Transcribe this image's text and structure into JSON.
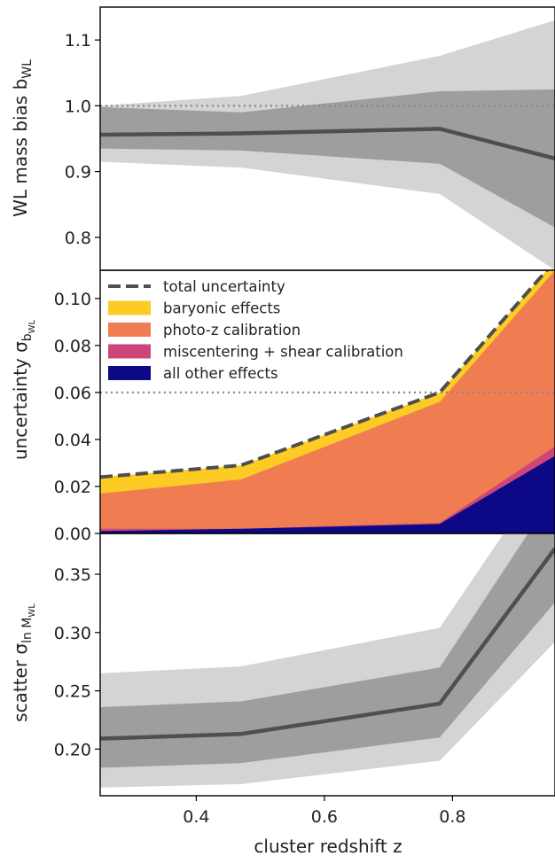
{
  "chart_data": [
    {
      "type": "area",
      "ylabel": "WL mass bias b",
      "ylabel_sub": "WL",
      "x": [
        0.25,
        0.47,
        0.78,
        0.96
      ],
      "median": [
        0.956,
        0.958,
        0.965,
        0.92
      ],
      "band_1sigma": {
        "low": [
          0.935,
          0.932,
          0.912,
          0.815
        ],
        "high": [
          0.998,
          0.99,
          1.022,
          1.025
        ]
      },
      "band_2sigma": {
        "low": [
          0.915,
          0.906,
          0.866,
          0.75
        ],
        "high": [
          1.0,
          1.015,
          1.076,
          1.13
        ]
      },
      "reference_line": 1.0,
      "xlim": [
        0.25,
        0.96
      ],
      "ylim": [
        0.75,
        1.15
      ],
      "yticks": [
        0.8,
        0.9,
        1.0,
        1.1
      ],
      "ytick_labels": [
        "0.8",
        "0.9",
        "1.0",
        "1.1"
      ]
    },
    {
      "type": "area",
      "ylabel": "uncertainty σ",
      "ylabel_sub": "b",
      "ylabel_subsub": "WL",
      "x": [
        0.25,
        0.47,
        0.78,
        0.96
      ],
      "series": [
        {
          "name": "all other effects",
          "color": "#0d0887",
          "values": [
            0.001,
            0.002,
            0.004,
            0.033
          ]
        },
        {
          "name": "miscentering + shear calibration",
          "color": "#cc4778",
          "values": [
            0.002,
            0.002,
            0.0045,
            0.037
          ]
        },
        {
          "name": "photo-z calibration",
          "color": "#f07d52",
          "values": [
            0.017,
            0.023,
            0.056,
            0.112
          ]
        },
        {
          "name": "baryonic effects",
          "color": "#fccc25",
          "values": [
            0.024,
            0.029,
            0.06,
            0.116
          ]
        }
      ],
      "total_uncertainty": {
        "name": "total uncertainty",
        "values": [
          0.024,
          0.029,
          0.06,
          0.116
        ]
      },
      "reference_line": 0.06,
      "xlim": [
        0.25,
        0.96
      ],
      "ylim": [
        0.0,
        0.112
      ],
      "yticks": [
        0.0,
        0.02,
        0.04,
        0.06,
        0.08,
        0.1
      ],
      "ytick_labels": [
        "0.00",
        "0.02",
        "0.04",
        "0.06",
        "0.08",
        "0.10"
      ],
      "legend_position": "top-left"
    },
    {
      "type": "area",
      "ylabel": "scatter σ",
      "ylabel_sub": "ln M",
      "ylabel_subsub": "WL",
      "xlabel": "cluster redshift z",
      "x": [
        0.25,
        0.47,
        0.78,
        0.96
      ],
      "median": [
        0.209,
        0.213,
        0.239,
        0.372
      ],
      "band_1sigma": {
        "low": [
          0.184,
          0.188,
          0.21,
          0.326
        ],
        "high": [
          0.236,
          0.241,
          0.27,
          0.42
        ]
      },
      "band_2sigma": {
        "low": [
          0.167,
          0.17,
          0.19,
          0.292
        ],
        "high": [
          0.265,
          0.271,
          0.304,
          0.45
        ]
      },
      "xlim": [
        0.25,
        0.96
      ],
      "ylim": [
        0.16,
        0.385
      ],
      "xticks": [
        0.4,
        0.6,
        0.8
      ],
      "xtick_labels": [
        "0.4",
        "0.6",
        "0.8"
      ],
      "yticks": [
        0.2,
        0.25,
        0.3,
        0.35
      ],
      "ytick_labels": [
        "0.20",
        "0.25",
        "0.30",
        "0.35"
      ]
    }
  ],
  "colors": {
    "band_outer": "#d4d4d4",
    "band_inner": "#9e9e9e",
    "median_line": "#4f4f4f",
    "reference_line": "#888888"
  }
}
